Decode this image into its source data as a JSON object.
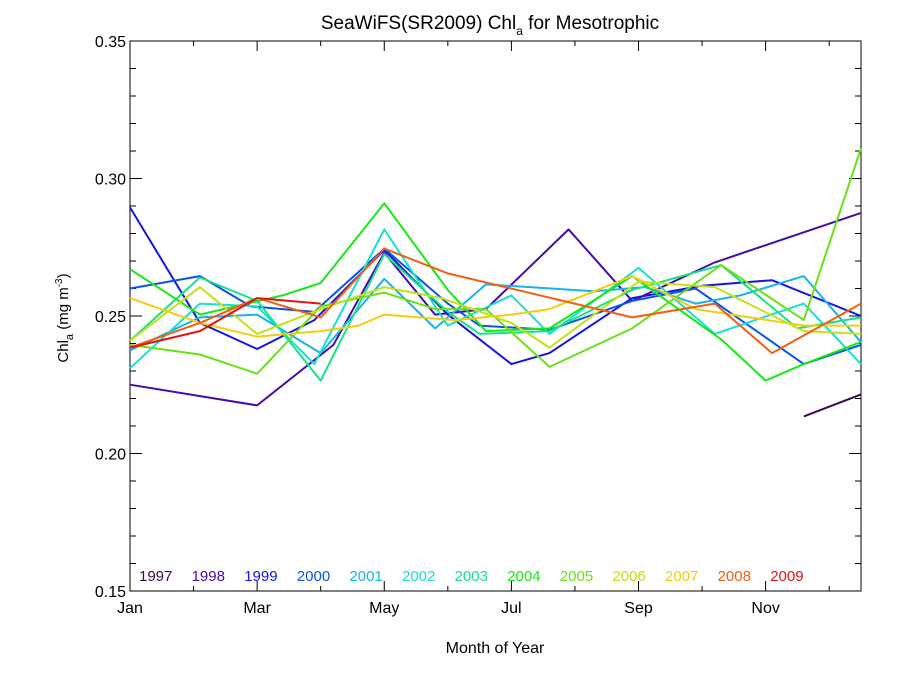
{
  "chart_data": {
    "type": "line",
    "title_main": "SeaWiFS(SR2009) Chl",
    "title_sub": "a",
    "title_tail": " for Mesotrophic",
    "xlabel": "Month of Year",
    "ylabel_main": "Chl",
    "ylabel_sub": "a",
    "ylabel_units_open": " (mg m",
    "ylabel_units_sup": "-3",
    "ylabel_units_close": ")",
    "xlim": [
      1,
      12.5
    ],
    "ylim": [
      0.15,
      0.35
    ],
    "x_ticks": [
      {
        "value": 1,
        "label": "Jan"
      },
      {
        "value": 3,
        "label": "Mar"
      },
      {
        "value": 5,
        "label": "May"
      },
      {
        "value": 7,
        "label": "Jul"
      },
      {
        "value": 9,
        "label": "Sep"
      },
      {
        "value": 11,
        "label": "Nov"
      }
    ],
    "x_minor_ticks": [
      2,
      4,
      6,
      8,
      10,
      12
    ],
    "y_ticks": [
      {
        "value": 0.15,
        "label": "0.15"
      },
      {
        "value": 0.2,
        "label": "0.20"
      },
      {
        "value": 0.25,
        "label": "0.25"
      },
      {
        "value": 0.3,
        "label": "0.30"
      },
      {
        "value": 0.35,
        "label": "0.35"
      }
    ],
    "y_minor_step": 0.01,
    "legend_placement": "bottom-inside",
    "series": [
      {
        "name": "1997",
        "color": "#3a0a4a",
        "points": [
          [
            11.6,
            0.2135
          ],
          [
            12.5,
            0.2215
          ]
        ]
      },
      {
        "name": "1998",
        "color": "#4a0aa8",
        "points": [
          [
            1,
            0.225
          ],
          [
            3,
            0.2175
          ],
          [
            4.2,
            0.2395
          ],
          [
            5,
            0.273
          ],
          [
            5.8,
            0.2505
          ],
          [
            6.6,
            0.2525
          ],
          [
            7.9,
            0.2815
          ],
          [
            8.9,
            0.2555
          ],
          [
            10.2,
            0.2695
          ],
          [
            12.5,
            0.2875
          ]
        ]
      },
      {
        "name": "1999",
        "color": "#1515dc",
        "points": [
          [
            1,
            0.2895
          ],
          [
            2.1,
            0.2475
          ],
          [
            3,
            0.238
          ],
          [
            3.9,
            0.2485
          ],
          [
            5,
            0.274
          ],
          [
            6,
            0.2505
          ],
          [
            7,
            0.2325
          ],
          [
            7.6,
            0.2365
          ],
          [
            8.9,
            0.2565
          ],
          [
            10,
            0.261
          ],
          [
            11.1,
            0.263
          ],
          [
            12.5,
            0.25
          ]
        ]
      },
      {
        "name": "2000",
        "color": "#0a55e8",
        "points": [
          [
            1,
            0.26
          ],
          [
            2.1,
            0.2645
          ],
          [
            2.9,
            0.2535
          ],
          [
            3.9,
            0.2515
          ],
          [
            5,
            0.2745
          ],
          [
            6,
            0.2545
          ],
          [
            6.5,
            0.2465
          ],
          [
            7.6,
            0.245
          ],
          [
            8.9,
            0.2555
          ],
          [
            9.9,
            0.26
          ],
          [
            11.6,
            0.2325
          ],
          [
            12.5,
            0.2395
          ]
        ]
      },
      {
        "name": "2001",
        "color": "#18b4e8",
        "points": [
          [
            1,
            0.2375
          ],
          [
            2.1,
            0.2495
          ],
          [
            3,
            0.2505
          ],
          [
            4,
            0.2365
          ],
          [
            5,
            0.2635
          ],
          [
            5.8,
            0.2455
          ],
          [
            6.6,
            0.2615
          ],
          [
            8.3,
            0.259
          ],
          [
            9.1,
            0.2605
          ],
          [
            9.9,
            0.2545
          ],
          [
            10.6,
            0.2575
          ],
          [
            11.6,
            0.2645
          ],
          [
            12.5,
            0.2405
          ]
        ]
      },
      {
        "name": "2002",
        "color": "#14e0d4",
        "points": [
          [
            1,
            0.231
          ],
          [
            2.1,
            0.2545
          ],
          [
            3,
            0.2535
          ],
          [
            3.9,
            0.2325
          ],
          [
            5,
            0.2815
          ],
          [
            6,
            0.2465
          ],
          [
            7,
            0.2575
          ],
          [
            7.6,
            0.2435
          ],
          [
            9,
            0.2675
          ],
          [
            10.2,
            0.2435
          ],
          [
            11.6,
            0.2545
          ],
          [
            12.5,
            0.2325
          ]
        ]
      },
      {
        "name": "2003",
        "color": "#16e088",
        "points": [
          [
            1,
            0.241
          ],
          [
            2.1,
            0.264
          ],
          [
            3,
            0.2555
          ],
          [
            4,
            0.2265
          ],
          [
            5,
            0.2725
          ],
          [
            6,
            0.2515
          ],
          [
            6.5,
            0.2435
          ],
          [
            7.6,
            0.2445
          ],
          [
            8.9,
            0.2595
          ],
          [
            10.3,
            0.2685
          ],
          [
            11.5,
            0.2455
          ],
          [
            12.5,
            0.2495
          ]
        ]
      },
      {
        "name": "2004",
        "color": "#18e818",
        "points": [
          [
            1,
            0.267
          ],
          [
            2.1,
            0.2505
          ],
          [
            3.4,
            0.2575
          ],
          [
            4,
            0.262
          ],
          [
            5,
            0.291
          ],
          [
            6,
            0.2595
          ],
          [
            6.6,
            0.2445
          ],
          [
            7.6,
            0.2455
          ],
          [
            8.9,
            0.2645
          ],
          [
            10.3,
            0.2415
          ],
          [
            11,
            0.2265
          ],
          [
            11.6,
            0.2325
          ],
          [
            12.5,
            0.2405
          ]
        ]
      },
      {
        "name": "2005",
        "color": "#6ae018",
        "points": [
          [
            1,
            0.2395
          ],
          [
            2.1,
            0.236
          ],
          [
            3,
            0.229
          ],
          [
            4,
            0.2535
          ],
          [
            5,
            0.2585
          ],
          [
            5.8,
            0.2525
          ],
          [
            6.6,
            0.2525
          ],
          [
            7.6,
            0.2315
          ],
          [
            8.9,
            0.2455
          ],
          [
            10.3,
            0.2685
          ],
          [
            11.6,
            0.2485
          ],
          [
            12.5,
            0.311
          ]
        ]
      },
      {
        "name": "2006",
        "color": "#c4e018",
        "points": [
          [
            1,
            0.241
          ],
          [
            2.1,
            0.2605
          ],
          [
            3,
            0.2435
          ],
          [
            4,
            0.2525
          ],
          [
            5,
            0.2605
          ],
          [
            5.9,
            0.2565
          ],
          [
            7,
            0.2475
          ],
          [
            7.6,
            0.2385
          ],
          [
            9,
            0.2625
          ],
          [
            10.2,
            0.2605
          ],
          [
            11.6,
            0.2445
          ],
          [
            12.5,
            0.2435
          ]
        ]
      },
      {
        "name": "2007",
        "color": "#f4cc10",
        "points": [
          [
            1,
            0.2565
          ],
          [
            2.1,
            0.2475
          ],
          [
            3,
            0.2425
          ],
          [
            4,
            0.2445
          ],
          [
            4.6,
            0.2465
          ],
          [
            5,
            0.2505
          ],
          [
            6.1,
            0.2485
          ],
          [
            7,
            0.2505
          ],
          [
            7.6,
            0.2525
          ],
          [
            8.9,
            0.2645
          ],
          [
            9.9,
            0.2525
          ],
          [
            11.6,
            0.2465
          ],
          [
            12.5,
            0.2465
          ]
        ]
      },
      {
        "name": "2008",
        "color": "#f06010",
        "points": [
          [
            1,
            0.2385
          ],
          [
            2.1,
            0.2475
          ],
          [
            3,
            0.2565
          ],
          [
            4,
            0.2495
          ],
          [
            5,
            0.2745
          ],
          [
            6,
            0.2655
          ],
          [
            8.9,
            0.2495
          ],
          [
            10.2,
            0.2545
          ],
          [
            11.1,
            0.2365
          ],
          [
            12.5,
            0.2545
          ]
        ]
      },
      {
        "name": "2009",
        "color": "#e01414",
        "points": [
          [
            1,
            0.2385
          ],
          [
            2.1,
            0.2445
          ],
          [
            3,
            0.2565
          ],
          [
            4,
            0.2545
          ]
        ]
      }
    ]
  }
}
